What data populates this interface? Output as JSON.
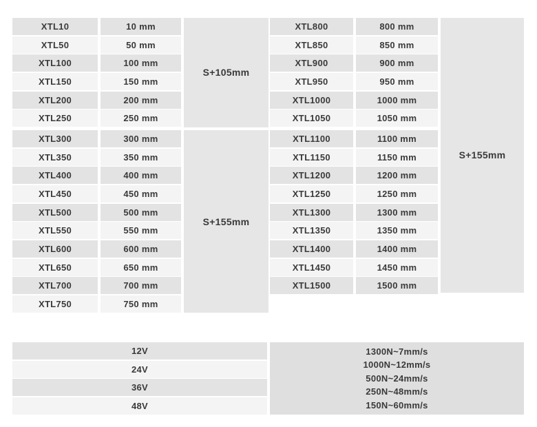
{
  "colors": {
    "row_dark": "#e3e3e4",
    "row_light": "#f4f4f5",
    "span_block": "#e6e6e7",
    "speed_block": "#dfdfe0",
    "text": "#3a3a3a",
    "page_bg": "#ffffff"
  },
  "spec_tables": [
    {
      "id": "left",
      "rows": [
        {
          "model": "XTL10",
          "stroke": "10 mm"
        },
        {
          "model": "XTL50",
          "stroke": "50 mm"
        },
        {
          "model": "XTL100",
          "stroke": "100 mm"
        },
        {
          "model": "XTL150",
          "stroke": "150 mm"
        },
        {
          "model": "XTL200",
          "stroke": "200 mm"
        },
        {
          "model": "XTL250",
          "stroke": "250 mm"
        },
        {
          "model": "XTL300",
          "stroke": "300 mm"
        },
        {
          "model": "XTL350",
          "stroke": "350 mm"
        },
        {
          "model": "XTL400",
          "stroke": "400 mm"
        },
        {
          "model": "XTL450",
          "stroke": "450 mm"
        },
        {
          "model": "XTL500",
          "stroke": "500 mm"
        },
        {
          "model": "XTL550",
          "stroke": "550 mm"
        },
        {
          "model": "XTL600",
          "stroke": "600 mm"
        },
        {
          "model": "XTL650",
          "stroke": "650 mm"
        },
        {
          "model": "XTL700",
          "stroke": "700 mm"
        },
        {
          "model": "XTL750",
          "stroke": "750 mm"
        }
      ],
      "stroke_groups": [
        {
          "label": "S+105mm",
          "row_span": 6
        },
        {
          "label": "S+155mm",
          "row_span": 10
        }
      ]
    },
    {
      "id": "right",
      "rows": [
        {
          "model": "XTL800",
          "stroke": "800 mm"
        },
        {
          "model": "XTL850",
          "stroke": "850 mm"
        },
        {
          "model": "XTL900",
          "stroke": "900 mm"
        },
        {
          "model": "XTL950",
          "stroke": "950 mm"
        },
        {
          "model": "XTL1000",
          "stroke": "1000 mm"
        },
        {
          "model": "XTL1050",
          "stroke": "1050 mm"
        },
        {
          "model": "XTL1100",
          "stroke": "1100 mm"
        },
        {
          "model": "XTL1150",
          "stroke": "1150 mm"
        },
        {
          "model": "XTL1200",
          "stroke": "1200 mm"
        },
        {
          "model": "XTL1250",
          "stroke": "1250 mm"
        },
        {
          "model": "XTL1300",
          "stroke": "1300 mm"
        },
        {
          "model": "XTL1350",
          "stroke": "1350 mm"
        },
        {
          "model": "XTL1400",
          "stroke": "1400 mm"
        },
        {
          "model": "XTL1450",
          "stroke": "1450 mm"
        },
        {
          "model": "XTL1500",
          "stroke": "1500 mm"
        }
      ],
      "stroke_groups": [
        {
          "label": "S+155mm",
          "row_span": 15
        }
      ],
      "group_gap_after_row": 6
    }
  ],
  "voltage_options": [
    "12V",
    "24V",
    "36V",
    "48V"
  ],
  "force_speed_options": [
    "1300N~7mm/s",
    "1000N~12mm/s",
    "500N~24mm/s",
    "250N~48mm/s",
    "150N~60mm/s"
  ]
}
